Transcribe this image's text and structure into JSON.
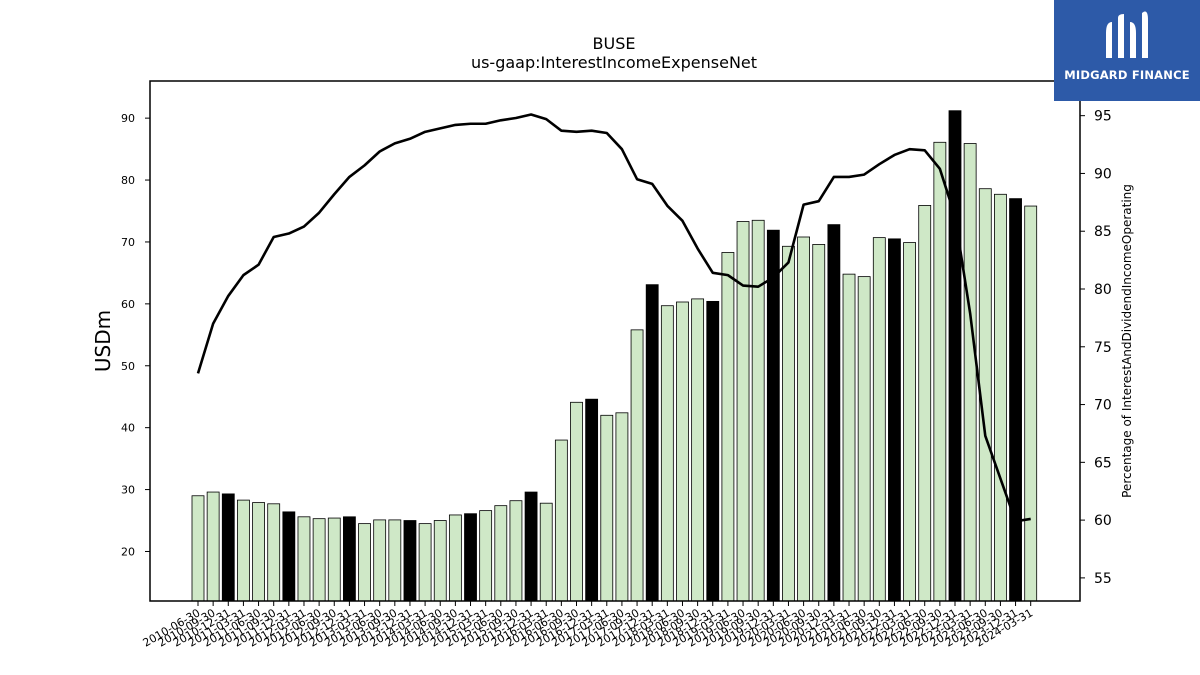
{
  "logo": {
    "text": "MIDGARD FINANCE",
    "icon": "midgard-m-icon"
  },
  "colors": {
    "bar_light": "#cfe8c7",
    "bar_dark": "#000000",
    "line": "#000000",
    "logo_bg": "#2d5aa8"
  },
  "chart_data": {
    "type": "bar",
    "title": "BUSE",
    "subtitle": "us-gaap:InterestIncomeExpenseNet",
    "ylabel": "USDm",
    "y2label": "Percentage of InterestAndDividendIncomeOperating",
    "ylim": [
      12,
      96
    ],
    "y2lim": [
      53,
      98
    ],
    "yticks": [
      20,
      30,
      40,
      50,
      60,
      70,
      80,
      90
    ],
    "y2ticks": [
      55,
      60,
      65,
      70,
      75,
      80,
      85,
      90,
      95
    ],
    "grid": false,
    "categories": [
      "2010-06-30",
      "2010-09-30",
      "2010-12-31",
      "2011-03-31",
      "2011-06-30",
      "2011-09-30",
      "2011-12-31",
      "2012-03-31",
      "2012-06-30",
      "2012-09-30",
      "2012-12-31",
      "2013-03-31",
      "2013-06-30",
      "2013-09-30",
      "2013-12-31",
      "2014-03-31",
      "2014-06-30",
      "2014-09-30",
      "2014-12-31",
      "2015-03-31",
      "2015-06-30",
      "2015-09-30",
      "2015-12-31",
      "2016-03-31",
      "2016-06-30",
      "2016-09-30",
      "2016-12-31",
      "2017-03-31",
      "2017-06-30",
      "2017-09-30",
      "2017-12-31",
      "2018-03-31",
      "2018-06-30",
      "2018-09-30",
      "2018-12-31",
      "2019-03-31",
      "2019-06-30",
      "2019-09-30",
      "2019-12-31",
      "2020-03-31",
      "2020-06-30",
      "2020-09-30",
      "2020-12-31",
      "2021-03-31",
      "2021-06-30",
      "2021-09-30",
      "2021-12-31",
      "2022-03-31",
      "2022-06-30",
      "2022-09-30",
      "2022-12-31",
      "2023-03-31",
      "2023-06-30",
      "2023-09-30",
      "2023-12-31",
      "2024-03-31"
    ],
    "series": [
      {
        "type": "bar",
        "values": [
          29.0,
          29.6,
          29.3,
          28.3,
          27.9,
          27.7,
          26.4,
          25.6,
          25.3,
          25.4,
          25.6,
          24.5,
          25.1,
          25.1,
          25.0,
          24.5,
          25.0,
          25.9,
          26.1,
          26.6,
          27.4,
          28.2,
          29.6,
          27.8,
          38.0,
          44.1,
          44.6,
          42.0,
          42.4,
          55.8,
          63.1,
          59.7,
          60.3,
          60.8,
          60.4,
          68.3,
          73.3,
          73.5,
          71.9,
          69.3,
          70.8,
          69.6,
          72.8,
          64.8,
          64.4,
          70.7,
          70.5,
          69.9,
          75.9,
          86.1,
          91.2,
          85.9,
          78.6,
          77.7,
          77.0,
          75.8
        ],
        "emphasis": [
          0,
          0,
          1,
          0,
          0,
          0,
          1,
          0,
          0,
          0,
          1,
          0,
          0,
          0,
          1,
          0,
          0,
          0,
          1,
          0,
          0,
          0,
          1,
          0,
          0,
          0,
          1,
          0,
          0,
          0,
          1,
          0,
          0,
          0,
          1,
          0,
          0,
          0,
          1,
          0,
          0,
          0,
          1,
          0,
          0,
          0,
          1,
          0,
          0,
          0,
          1,
          0,
          0,
          0,
          1,
          0
        ]
      },
      {
        "type": "line",
        "axis": "right",
        "values": [
          72.7,
          77.0,
          79.4,
          81.2,
          82.1,
          84.5,
          84.8,
          85.4,
          86.6,
          88.2,
          89.7,
          90.7,
          91.9,
          92.6,
          93.0,
          93.6,
          93.9,
          94.2,
          94.3,
          94.3,
          94.6,
          94.8,
          95.1,
          94.7,
          93.7,
          93.6,
          93.7,
          93.5,
          92.1,
          89.5,
          89.1,
          87.2,
          85.9,
          83.5,
          81.4,
          81.2,
          80.3,
          80.2,
          81.0,
          82.3,
          87.3,
          87.6,
          89.7,
          89.7,
          89.9,
          90.8,
          91.6,
          92.1,
          92.0,
          90.4,
          86.3,
          77.9,
          67.3,
          63.6,
          59.9,
          60.1
        ]
      }
    ]
  }
}
